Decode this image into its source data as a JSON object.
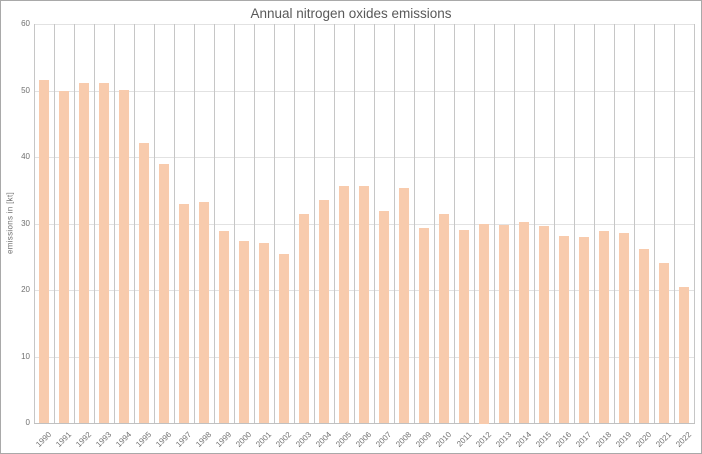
{
  "window": {
    "background": "#FFFFFF",
    "border_color": "#A9A9A9"
  },
  "chart_data": {
    "type": "bar",
    "title": "Annual nitrogen oxides emissions",
    "xlabel": "",
    "ylabel": "emissions in [kt]",
    "categories": [
      "1990",
      "1991",
      "1992",
      "1993",
      "1994",
      "1995",
      "1996",
      "1997",
      "1998",
      "1999",
      "2000",
      "2001",
      "2002",
      "2003",
      "2004",
      "2005",
      "2006",
      "2007",
      "2008",
      "2009",
      "2010",
      "2011",
      "2012",
      "2013",
      "2014",
      "2015",
      "2016",
      "2017",
      "2018",
      "2019",
      "2020",
      "2021",
      "2022"
    ],
    "values": [
      51.6,
      49.9,
      51.2,
      51.2,
      50.1,
      42.1,
      38.9,
      33.0,
      33.2,
      28.9,
      27.3,
      27.0,
      25.4,
      31.4,
      33.5,
      35.6,
      35.6,
      31.9,
      35.4,
      29.3,
      31.5,
      29.0,
      30.0,
      29.8,
      30.2,
      29.6,
      28.1,
      27.9,
      28.8,
      28.6,
      26.2,
      24.1,
      20.5
    ],
    "ylim": [
      0,
      60
    ],
    "yticks": [
      0,
      10,
      20,
      30,
      40,
      50,
      60
    ],
    "grid": {
      "horizontal": true,
      "vertical": true
    },
    "legend": "none",
    "colors": {
      "bar": "#F8CBAD",
      "grid_horizontal": "#E2E2E2",
      "grid_vertical": "#C6C6C6",
      "axis_line": "#C0C0C0",
      "title_text": "#595959",
      "tick_text": "#707070"
    }
  }
}
